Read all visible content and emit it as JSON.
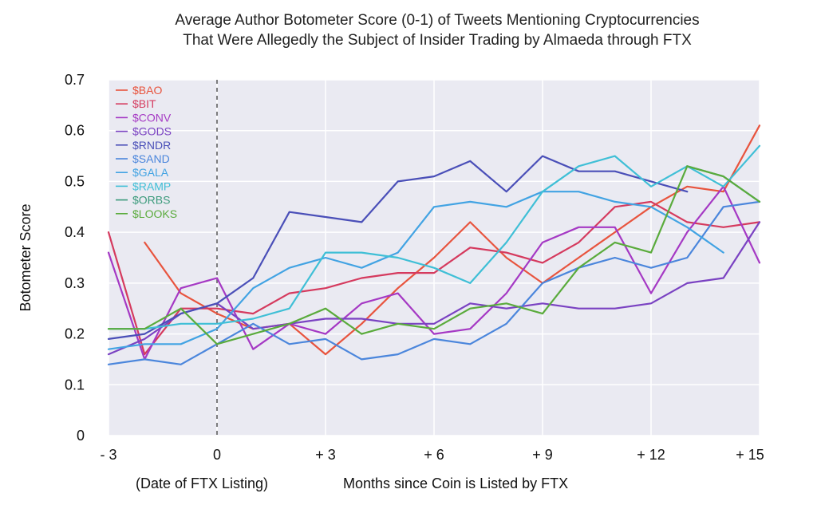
{
  "chart_data": {
    "type": "line",
    "title_lines": [
      "Average Author Botometer Score (0-1) of Tweets Mentioning Cryptocurrencies",
      "That Were Allegedly the Subject of Insider Trading by Almaeda through FTX"
    ],
    "xlabel": "Months since Coin is Listed by FTX",
    "xlabel_note": "(Date of FTX Listing)",
    "ylabel": "Botometer Score",
    "xlim": [
      -3,
      15
    ],
    "ylim": [
      0,
      0.7
    ],
    "x_ticks": [
      -3,
      0,
      3,
      6,
      9,
      12,
      15
    ],
    "x_tick_labels": [
      "- 3",
      "0",
      "+ 3",
      "+ 6",
      "+ 9",
      "+ 12",
      "+ 15"
    ],
    "y_ticks": [
      0,
      0.1,
      0.2,
      0.3,
      0.4,
      0.5,
      0.6,
      0.7
    ],
    "y_tick_labels": [
      "0",
      "0.1",
      "0.2",
      "0.3",
      "0.4",
      "0.5",
      "0.6",
      "0.7"
    ],
    "vline_x": 0,
    "grid": true,
    "background": "#eaeaf2",
    "legend_position": "top-left",
    "series": [
      {
        "name": "$BAO",
        "color": "#e8543e",
        "points": [
          [
            -2,
            0.38
          ],
          [
            -1,
            0.28
          ],
          [
            0,
            0.24
          ],
          [
            1,
            0.21
          ],
          [
            2,
            0.22
          ],
          [
            3,
            0.16
          ],
          [
            4,
            0.22
          ],
          [
            5,
            0.29
          ],
          [
            6,
            0.35
          ],
          [
            7,
            0.42
          ],
          [
            8,
            0.35
          ],
          [
            9,
            0.3
          ],
          [
            10,
            0.35
          ],
          [
            11,
            0.4
          ],
          [
            12,
            0.45
          ],
          [
            13,
            0.49
          ],
          [
            14,
            0.48
          ],
          [
            15,
            0.61
          ]
        ]
      },
      {
        "name": "$BIT",
        "color": "#d53a5e",
        "points": [
          [
            -3,
            0.4
          ],
          [
            -2,
            0.16
          ],
          [
            -1,
            0.25
          ],
          [
            0,
            0.25
          ],
          [
            1,
            0.24
          ],
          [
            2,
            0.28
          ],
          [
            3,
            0.29
          ],
          [
            4,
            0.31
          ],
          [
            5,
            0.32
          ],
          [
            6,
            0.32
          ],
          [
            7,
            0.37
          ],
          [
            8,
            0.36
          ],
          [
            9,
            0.34
          ],
          [
            10,
            0.38
          ],
          [
            11,
            0.45
          ],
          [
            12,
            0.46
          ],
          [
            13,
            0.42
          ],
          [
            14,
            0.41
          ],
          [
            15,
            0.42
          ]
        ]
      },
      {
        "name": "$CONV",
        "color": "#a539c4",
        "points": [
          [
            -3,
            0.36
          ],
          [
            -2,
            0.15
          ],
          [
            -1,
            0.29
          ],
          [
            0,
            0.31
          ],
          [
            1,
            0.17
          ],
          [
            2,
            0.22
          ],
          [
            3,
            0.2
          ],
          [
            4,
            0.26
          ],
          [
            5,
            0.28
          ],
          [
            6,
            0.2
          ],
          [
            7,
            0.21
          ],
          [
            8,
            0.28
          ],
          [
            9,
            0.38
          ],
          [
            10,
            0.41
          ],
          [
            11,
            0.41
          ],
          [
            12,
            0.28
          ],
          [
            13,
            0.4
          ],
          [
            14,
            0.49
          ],
          [
            15,
            0.34
          ]
        ]
      },
      {
        "name": "$GODS",
        "color": "#7a42c2",
        "points": [
          [
            -3,
            0.16
          ],
          [
            -2,
            0.19
          ],
          [
            -1,
            0.24
          ],
          [
            0,
            0.26
          ],
          [
            1,
            0.21
          ],
          [
            2,
            0.22
          ],
          [
            3,
            0.23
          ],
          [
            4,
            0.23
          ],
          [
            5,
            0.22
          ],
          [
            6,
            0.22
          ],
          [
            7,
            0.26
          ],
          [
            8,
            0.25
          ],
          [
            9,
            0.26
          ],
          [
            10,
            0.25
          ],
          [
            11,
            0.25
          ],
          [
            12,
            0.26
          ],
          [
            13,
            0.3
          ],
          [
            14,
            0.31
          ],
          [
            15,
            0.42
          ]
        ]
      },
      {
        "name": "$RNDR",
        "color": "#4a4fb8",
        "points": [
          [
            -3,
            0.19
          ],
          [
            -2,
            0.2
          ],
          [
            -1,
            0.24
          ],
          [
            0,
            0.26
          ],
          [
            1,
            0.31
          ],
          [
            2,
            0.44
          ],
          [
            3,
            0.43
          ],
          [
            4,
            0.42
          ],
          [
            5,
            0.5
          ],
          [
            6,
            0.51
          ],
          [
            7,
            0.54
          ],
          [
            8,
            0.48
          ],
          [
            9,
            0.55
          ],
          [
            10,
            0.52
          ],
          [
            11,
            0.52
          ],
          [
            12,
            0.5
          ],
          [
            13,
            0.48
          ]
        ]
      },
      {
        "name": "$SAND",
        "color": "#4b86dc",
        "points": [
          [
            -3,
            0.14
          ],
          [
            -2,
            0.15
          ],
          [
            -1,
            0.14
          ],
          [
            0,
            0.18
          ],
          [
            1,
            0.22
          ],
          [
            2,
            0.18
          ],
          [
            3,
            0.19
          ],
          [
            4,
            0.15
          ],
          [
            5,
            0.16
          ],
          [
            6,
            0.19
          ],
          [
            7,
            0.18
          ],
          [
            8,
            0.22
          ],
          [
            9,
            0.3
          ],
          [
            10,
            0.33
          ],
          [
            11,
            0.35
          ],
          [
            12,
            0.33
          ],
          [
            13,
            0.35
          ],
          [
            14,
            0.45
          ],
          [
            15,
            0.46
          ]
        ]
      },
      {
        "name": "$GALA",
        "color": "#42a3e3",
        "points": [
          [
            -3,
            0.17
          ],
          [
            -2,
            0.18
          ],
          [
            -1,
            0.18
          ],
          [
            0,
            0.21
          ],
          [
            1,
            0.29
          ],
          [
            2,
            0.33
          ],
          [
            3,
            0.35
          ],
          [
            4,
            0.33
          ],
          [
            5,
            0.36
          ],
          [
            6,
            0.45
          ],
          [
            7,
            0.46
          ],
          [
            8,
            0.45
          ],
          [
            9,
            0.48
          ],
          [
            10,
            0.48
          ],
          [
            11,
            0.46
          ],
          [
            12,
            0.45
          ],
          [
            13,
            0.41
          ],
          [
            14,
            0.36
          ]
        ]
      },
      {
        "name": "$RAMP",
        "color": "#3fbfd6",
        "points": [
          [
            -3,
            0.21
          ],
          [
            -2,
            0.21
          ],
          [
            -1,
            0.22
          ],
          [
            0,
            0.22
          ],
          [
            1,
            0.23
          ],
          [
            2,
            0.25
          ],
          [
            3,
            0.36
          ],
          [
            4,
            0.36
          ],
          [
            5,
            0.35
          ],
          [
            6,
            0.33
          ],
          [
            7,
            0.3
          ],
          [
            8,
            0.38
          ],
          [
            9,
            0.48
          ],
          [
            10,
            0.53
          ],
          [
            11,
            0.55
          ],
          [
            12,
            0.49
          ],
          [
            13,
            0.53
          ],
          [
            14,
            0.49
          ],
          [
            15,
            0.57
          ]
        ]
      },
      {
        "name": "$ORBS",
        "color": "#3b9a7b",
        "points": [
          [
            13,
            0.53
          ],
          [
            14,
            0.51
          ],
          [
            15,
            0.46
          ]
        ]
      },
      {
        "name": "$LOOKS",
        "color": "#5aab3c",
        "points": [
          [
            -3,
            0.21
          ],
          [
            -2,
            0.21
          ],
          [
            -1,
            0.25
          ],
          [
            0,
            0.18
          ],
          [
            1,
            0.2
          ],
          [
            2,
            0.22
          ],
          [
            3,
            0.25
          ],
          [
            4,
            0.2
          ],
          [
            5,
            0.22
          ],
          [
            6,
            0.21
          ],
          [
            7,
            0.25
          ],
          [
            8,
            0.26
          ],
          [
            9,
            0.24
          ],
          [
            10,
            0.33
          ],
          [
            11,
            0.38
          ],
          [
            12,
            0.36
          ],
          [
            13,
            0.53
          ],
          [
            14,
            0.51
          ],
          [
            15,
            0.46
          ]
        ]
      }
    ]
  }
}
